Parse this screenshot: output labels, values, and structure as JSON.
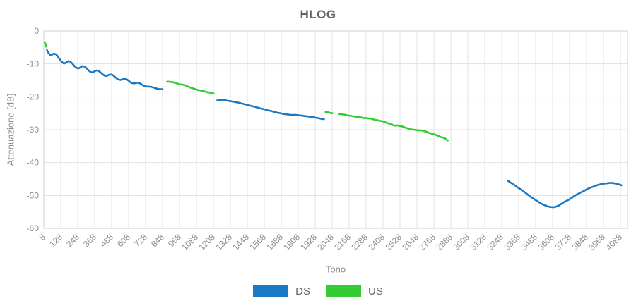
{
  "title": "HLOG",
  "chart_data": {
    "type": "line",
    "title": "HLOG",
    "xlabel": "Tono",
    "ylabel": "Attenuazione [dB]",
    "xlim": [
      8,
      4138
    ],
    "ylim": [
      -60,
      0
    ],
    "grid": true,
    "legend_position": "bottom-center",
    "x_ticks": [
      8,
      128,
      248,
      368,
      488,
      608,
      728,
      848,
      968,
      1088,
      1208,
      1328,
      1448,
      1568,
      1688,
      1808,
      1928,
      2048,
      2168,
      2288,
      2408,
      2528,
      2648,
      2768,
      2888,
      3008,
      3128,
      3248,
      3368,
      3488,
      3608,
      3728,
      3848,
      3968,
      4088
    ],
    "y_ticks": [
      0,
      -10,
      -20,
      -30,
      -40,
      -50,
      -60
    ],
    "series": [
      {
        "name": "DS",
        "color": "#1a78c4",
        "segments": [
          [
            [
              30,
              -5.8
            ],
            [
              42,
              -6.7
            ],
            [
              54,
              -7.3
            ],
            [
              66,
              -7.2
            ],
            [
              80,
              -6.9
            ],
            [
              95,
              -7.1
            ],
            [
              110,
              -7.9
            ],
            [
              125,
              -8.9
            ],
            [
              140,
              -9.6
            ],
            [
              152,
              -9.9
            ],
            [
              165,
              -9.6
            ],
            [
              180,
              -9.2
            ],
            [
              195,
              -9.3
            ],
            [
              210,
              -9.9
            ],
            [
              225,
              -10.7
            ],
            [
              240,
              -11.2
            ],
            [
              252,
              -11.4
            ],
            [
              265,
              -11.1
            ],
            [
              280,
              -10.7
            ],
            [
              295,
              -10.8
            ],
            [
              310,
              -11.3
            ],
            [
              325,
              -12.0
            ],
            [
              340,
              -12.5
            ],
            [
              352,
              -12.6
            ],
            [
              365,
              -12.3
            ],
            [
              380,
              -12.0
            ],
            [
              395,
              -12.1
            ],
            [
              410,
              -12.6
            ],
            [
              425,
              -13.2
            ],
            [
              440,
              -13.6
            ],
            [
              452,
              -13.7
            ],
            [
              465,
              -13.4
            ],
            [
              480,
              -13.2
            ],
            [
              495,
              -13.4
            ],
            [
              510,
              -13.9
            ],
            [
              525,
              -14.5
            ],
            [
              540,
              -14.8
            ],
            [
              552,
              -14.9
            ],
            [
              565,
              -14.7
            ],
            [
              580,
              -14.5
            ],
            [
              595,
              -14.7
            ],
            [
              610,
              -15.2
            ],
            [
              625,
              -15.7
            ],
            [
              640,
              -15.9
            ],
            [
              652,
              -15.9
            ],
            [
              665,
              -15.7
            ],
            [
              680,
              -15.8
            ],
            [
              695,
              -16.1
            ],
            [
              710,
              -16.5
            ],
            [
              725,
              -16.8
            ],
            [
              740,
              -16.9
            ],
            [
              755,
              -16.9
            ],
            [
              770,
              -17.0
            ],
            [
              785,
              -17.2
            ],
            [
              800,
              -17.4
            ],
            [
              815,
              -17.6
            ],
            [
              830,
              -17.7
            ],
            [
              848,
              -17.7
            ]
          ],
          [
            [
              1235,
              -21.1
            ],
            [
              1252,
              -21.0
            ],
            [
              1270,
              -20.9
            ],
            [
              1288,
              -21.0
            ],
            [
              1306,
              -21.2
            ],
            [
              1324,
              -21.3
            ],
            [
              1342,
              -21.4
            ],
            [
              1360,
              -21.6
            ],
            [
              1378,
              -21.7
            ],
            [
              1396,
              -21.9
            ],
            [
              1414,
              -22.1
            ],
            [
              1432,
              -22.3
            ],
            [
              1450,
              -22.5
            ],
            [
              1468,
              -22.7
            ],
            [
              1486,
              -22.9
            ],
            [
              1504,
              -23.1
            ],
            [
              1522,
              -23.3
            ],
            [
              1540,
              -23.5
            ],
            [
              1558,
              -23.7
            ],
            [
              1576,
              -23.9
            ],
            [
              1594,
              -24.1
            ],
            [
              1612,
              -24.3
            ],
            [
              1630,
              -24.5
            ],
            [
              1648,
              -24.7
            ],
            [
              1666,
              -24.9
            ],
            [
              1684,
              -25.0
            ],
            [
              1702,
              -25.2
            ],
            [
              1720,
              -25.3
            ],
            [
              1738,
              -25.4
            ],
            [
              1756,
              -25.5
            ],
            [
              1774,
              -25.5
            ],
            [
              1792,
              -25.5
            ],
            [
              1810,
              -25.6
            ],
            [
              1828,
              -25.7
            ],
            [
              1846,
              -25.8
            ],
            [
              1864,
              -25.9
            ],
            [
              1882,
              -26.0
            ],
            [
              1900,
              -26.1
            ],
            [
              1918,
              -26.2
            ],
            [
              1936,
              -26.4
            ],
            [
              1954,
              -26.5
            ],
            [
              1972,
              -26.7
            ],
            [
              1990,
              -26.8
            ]
          ],
          [
            [
              3290,
              -45.5
            ],
            [
              3308,
              -46.0
            ],
            [
              3326,
              -46.5
            ],
            [
              3344,
              -47.0
            ],
            [
              3362,
              -47.6
            ],
            [
              3380,
              -48.1
            ],
            [
              3398,
              -48.6
            ],
            [
              3416,
              -49.2
            ],
            [
              3434,
              -49.8
            ],
            [
              3452,
              -50.4
            ],
            [
              3470,
              -50.9
            ],
            [
              3488,
              -51.4
            ],
            [
              3506,
              -51.9
            ],
            [
              3524,
              -52.4
            ],
            [
              3542,
              -52.8
            ],
            [
              3560,
              -53.1
            ],
            [
              3578,
              -53.4
            ],
            [
              3596,
              -53.5
            ],
            [
              3614,
              -53.6
            ],
            [
              3632,
              -53.4
            ],
            [
              3650,
              -53.1
            ],
            [
              3668,
              -52.6
            ],
            [
              3686,
              -52.1
            ],
            [
              3704,
              -51.7
            ],
            [
              3722,
              -51.3
            ],
            [
              3740,
              -50.8
            ],
            [
              3758,
              -50.3
            ],
            [
              3776,
              -49.8
            ],
            [
              3794,
              -49.4
            ],
            [
              3812,
              -49.0
            ],
            [
              3830,
              -48.6
            ],
            [
              3848,
              -48.2
            ],
            [
              3866,
              -47.8
            ],
            [
              3884,
              -47.5
            ],
            [
              3902,
              -47.2
            ],
            [
              3920,
              -46.9
            ],
            [
              3938,
              -46.7
            ],
            [
              3956,
              -46.5
            ],
            [
              3974,
              -46.4
            ],
            [
              3992,
              -46.3
            ],
            [
              4010,
              -46.2
            ],
            [
              4028,
              -46.2
            ],
            [
              4046,
              -46.3
            ],
            [
              4064,
              -46.5
            ],
            [
              4082,
              -46.7
            ],
            [
              4095,
              -46.9
            ]
          ]
        ]
      },
      {
        "name": "US",
        "color": "#33cc33",
        "segments": [
          [
            [
              14,
              -3.4
            ],
            [
              18,
              -3.7
            ],
            [
              22,
              -4.2
            ],
            [
              26,
              -4.8
            ]
          ],
          [
            [
              880,
              -15.4
            ],
            [
              895,
              -15.4
            ],
            [
              910,
              -15.5
            ],
            [
              925,
              -15.6
            ],
            [
              940,
              -15.8
            ],
            [
              955,
              -16.0
            ],
            [
              970,
              -16.2
            ],
            [
              985,
              -16.3
            ],
            [
              1000,
              -16.4
            ],
            [
              1015,
              -16.6
            ],
            [
              1030,
              -16.9
            ],
            [
              1045,
              -17.2
            ],
            [
              1060,
              -17.4
            ],
            [
              1075,
              -17.6
            ],
            [
              1090,
              -17.8
            ],
            [
              1105,
              -18.0
            ],
            [
              1120,
              -18.1
            ],
            [
              1135,
              -18.3
            ],
            [
              1150,
              -18.4
            ],
            [
              1165,
              -18.6
            ],
            [
              1180,
              -18.7
            ],
            [
              1195,
              -18.9
            ],
            [
              1210,
              -19.0
            ]
          ],
          [
            [
              2002,
              -24.6
            ],
            [
              2018,
              -24.7
            ],
            [
              2034,
              -24.9
            ],
            [
              2050,
              -25.0
            ]
          ],
          [
            [
              2096,
              -25.2
            ],
            [
              2112,
              -25.3
            ],
            [
              2128,
              -25.4
            ],
            [
              2144,
              -25.5
            ],
            [
              2160,
              -25.7
            ],
            [
              2176,
              -25.8
            ],
            [
              2192,
              -25.9
            ],
            [
              2208,
              -26.0
            ],
            [
              2224,
              -26.1
            ],
            [
              2240,
              -26.2
            ],
            [
              2256,
              -26.3
            ],
            [
              2272,
              -26.5
            ],
            [
              2288,
              -26.4
            ],
            [
              2304,
              -26.6
            ],
            [
              2320,
              -26.6
            ],
            [
              2336,
              -26.8
            ],
            [
              2352,
              -27.0
            ],
            [
              2368,
              -27.1
            ],
            [
              2384,
              -27.3
            ],
            [
              2400,
              -27.4
            ],
            [
              2416,
              -27.6
            ],
            [
              2432,
              -27.9
            ],
            [
              2448,
              -28.1
            ],
            [
              2464,
              -28.3
            ],
            [
              2480,
              -28.6
            ],
            [
              2496,
              -28.8
            ],
            [
              2512,
              -28.7
            ],
            [
              2528,
              -28.9
            ],
            [
              2544,
              -29.0
            ],
            [
              2560,
              -29.3
            ],
            [
              2576,
              -29.5
            ],
            [
              2592,
              -29.7
            ],
            [
              2608,
              -29.9
            ],
            [
              2624,
              -30.0
            ],
            [
              2640,
              -30.1
            ],
            [
              2656,
              -30.2
            ],
            [
              2672,
              -30.2
            ],
            [
              2688,
              -30.3
            ],
            [
              2704,
              -30.5
            ],
            [
              2720,
              -30.7
            ],
            [
              2736,
              -31.0
            ],
            [
              2752,
              -31.2
            ],
            [
              2768,
              -31.4
            ],
            [
              2784,
              -31.6
            ],
            [
              2800,
              -31.9
            ],
            [
              2816,
              -32.2
            ],
            [
              2832,
              -32.4
            ],
            [
              2848,
              -32.7
            ],
            [
              2860,
              -33.1
            ],
            [
              2866,
              -33.3
            ]
          ]
        ]
      }
    ]
  },
  "legend": {
    "items": [
      {
        "label": "DS",
        "color": "#1a78c4"
      },
      {
        "label": "US",
        "color": "#33cc33"
      }
    ]
  },
  "colors": {
    "ds_line": "#1a78c4",
    "us_line": "#33cc33",
    "grid": "#e1e1e1",
    "frame": "#cfcfcf",
    "title_text": "#636363",
    "tick_text": "#8c8c8c"
  }
}
